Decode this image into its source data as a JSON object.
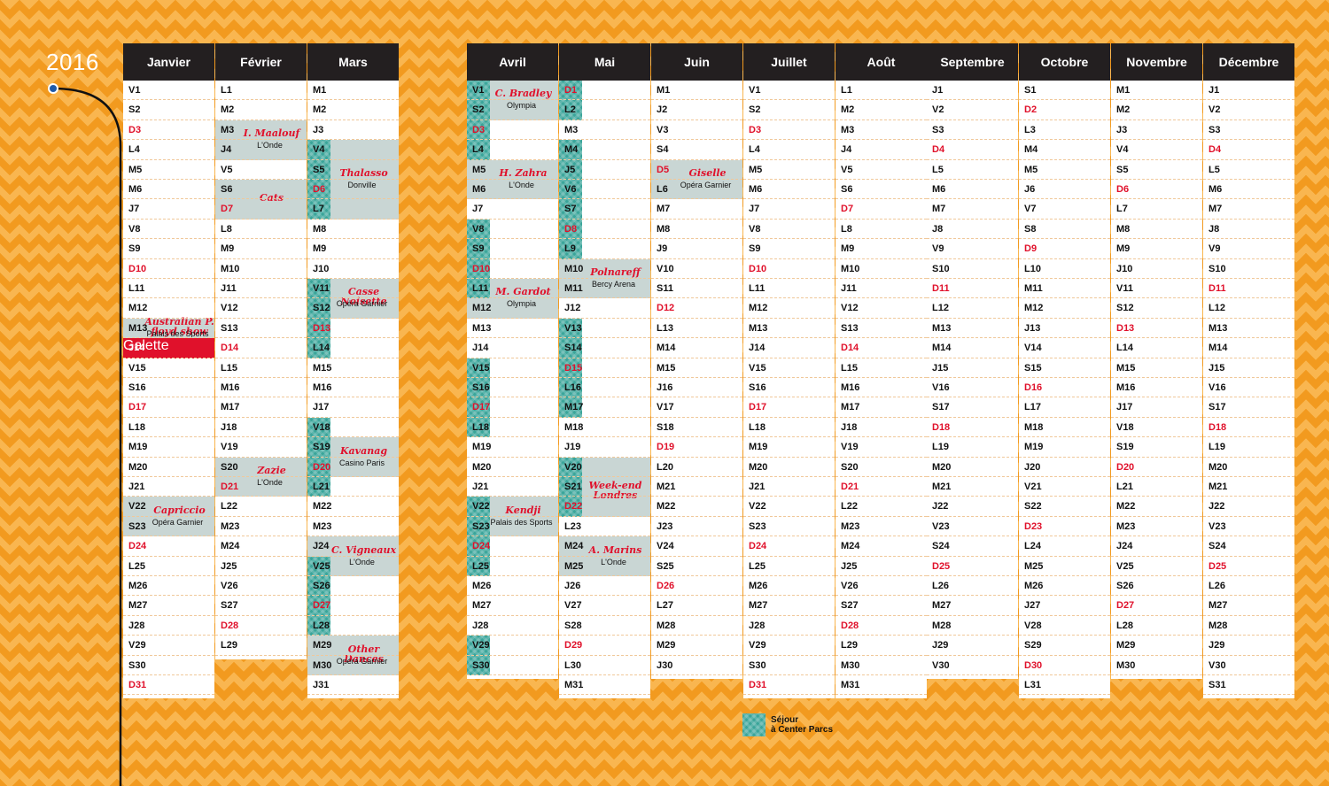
{
  "year": "2016",
  "legend": {
    "line1": "Séjour",
    "line2": "à Center Parcs"
  },
  "months": [
    {
      "name": "Janvier",
      "days": [
        "V1",
        "S2",
        "D3",
        "L4",
        "M5",
        "M6",
        "J7",
        "V8",
        "S9",
        "D10",
        "L11",
        "M12",
        "M13",
        "J14",
        "V15",
        "S16",
        "D17",
        "L18",
        "M19",
        "M20",
        "J21",
        "V22",
        "S23",
        "D24",
        "L25",
        "M26",
        "M27",
        "J28",
        "V29",
        "S30",
        "D31"
      ],
      "events": [
        {
          "title": "Australian P. floyd show",
          "venue": "Palais des Sports",
          "start": 12,
          "end": 12
        },
        {
          "title": "Capriccio",
          "venue": "Opéra Garnier",
          "start": 21,
          "end": 22
        }
      ],
      "galette": {
        "day": 13,
        "label": "Galette"
      },
      "centerparcs": []
    },
    {
      "name": "Février",
      "days": [
        "L1",
        "M2",
        "M3",
        "J4",
        "V5",
        "S6",
        "D7",
        "L8",
        "M9",
        "M10",
        "J11",
        "V12",
        "S13",
        "D14",
        "L15",
        "M16",
        "M17",
        "J18",
        "V19",
        "S20",
        "D21",
        "L22",
        "M23",
        "M24",
        "J25",
        "V26",
        "S27",
        "D28",
        "L29"
      ],
      "events": [
        {
          "title": "I. Maalouf",
          "venue": "L'Onde",
          "start": 2,
          "end": 3
        },
        {
          "title": "Cats",
          "venue": "",
          "start": 5,
          "end": 6
        },
        {
          "title": "Zazie",
          "venue": "L'Onde",
          "start": 19,
          "end": 20
        }
      ],
      "centerparcs": []
    },
    {
      "name": "Mars",
      "days": [
        "M1",
        "M2",
        "J3",
        "V4",
        "S5",
        "D6",
        "L7",
        "M8",
        "M9",
        "J10",
        "V11",
        "S12",
        "D13",
        "L14",
        "M15",
        "M16",
        "J17",
        "V18",
        "S19",
        "D20",
        "L21",
        "M22",
        "M23",
        "J24",
        "V25",
        "S26",
        "D27",
        "L28",
        "M29",
        "M30",
        "J31"
      ],
      "events": [
        {
          "title": "Thalasso",
          "venue": "Donville",
          "start": 3,
          "end": 6
        },
        {
          "title": "Casse Noisette",
          "venue": "Opéra Garnier",
          "start": 10,
          "end": 11
        },
        {
          "title": "Kavanag",
          "venue": "Casino Paris",
          "start": 18,
          "end": 19
        },
        {
          "title": "C. Vigneaux",
          "venue": "L'Onde",
          "start": 23,
          "end": 24
        },
        {
          "title": "Other Dances",
          "venue": "Opéra Garnier",
          "start": 28,
          "end": 29
        }
      ],
      "centerparcs": [
        [
          3,
          6
        ],
        [
          10,
          13
        ],
        [
          17,
          20
        ],
        [
          24,
          27
        ]
      ]
    },
    {
      "name": "Avril",
      "days": [
        "V1",
        "S2",
        "D3",
        "L4",
        "M5",
        "M6",
        "J7",
        "V8",
        "S9",
        "D10",
        "L11",
        "M12",
        "M13",
        "J14",
        "V15",
        "S16",
        "D17",
        "L18",
        "M19",
        "M20",
        "J21",
        "V22",
        "S23",
        "D24",
        "L25",
        "M26",
        "M27",
        "J28",
        "V29",
        "S30"
      ],
      "events": [
        {
          "title": "C. Bradley",
          "venue": "Olympia",
          "start": 0,
          "end": 1
        },
        {
          "title": "H. Zahra",
          "venue": "L'Onde",
          "start": 4,
          "end": 5
        },
        {
          "title": "M. Gardot",
          "venue": "Olympia",
          "start": 10,
          "end": 11
        },
        {
          "title": "Kendji",
          "venue": "Palais des Sports",
          "start": 21,
          "end": 22
        }
      ],
      "centerparcs": [
        [
          0,
          3
        ],
        [
          7,
          10
        ],
        [
          14,
          17
        ],
        [
          21,
          24
        ],
        [
          28,
          29
        ]
      ]
    },
    {
      "name": "Mai",
      "days": [
        "D1",
        "L2",
        "M3",
        "M4",
        "J5",
        "V6",
        "S7",
        "D8",
        "L9",
        "M10",
        "M11",
        "J12",
        "V13",
        "S14",
        "D15",
        "L16",
        "M17",
        "M18",
        "J19",
        "V20",
        "S21",
        "D22",
        "L23",
        "M24",
        "M25",
        "J26",
        "V27",
        "S28",
        "D29",
        "L30",
        "M31"
      ],
      "events": [
        {
          "title": "Polnareff",
          "venue": "Bercy Arena",
          "start": 9,
          "end": 10
        },
        {
          "title": "Week-end Londres",
          "venue": "",
          "start": 19,
          "end": 21
        },
        {
          "title": "A. Marins",
          "venue": "L'Onde",
          "start": 23,
          "end": 24
        }
      ],
      "centerparcs": [
        [
          0,
          1
        ],
        [
          3,
          8
        ],
        [
          12,
          16
        ],
        [
          19,
          21
        ]
      ]
    },
    {
      "name": "Juin",
      "days": [
        "M1",
        "J2",
        "V3",
        "S4",
        "D5",
        "L6",
        "M7",
        "M8",
        "J9",
        "V10",
        "S11",
        "D12",
        "L13",
        "M14",
        "M15",
        "J16",
        "V17",
        "S18",
        "D19",
        "L20",
        "M21",
        "M22",
        "J23",
        "V24",
        "S25",
        "D26",
        "L27",
        "M28",
        "M29",
        "J30"
      ],
      "events": [
        {
          "title": "Giselle",
          "venue": "Opéra Garnier",
          "start": 4,
          "end": 5
        }
      ],
      "centerparcs": []
    },
    {
      "name": "Juillet",
      "days": [
        "V1",
        "S2",
        "D3",
        "L4",
        "M5",
        "M6",
        "J7",
        "V8",
        "S9",
        "D10",
        "L11",
        "M12",
        "M13",
        "J14",
        "V15",
        "S16",
        "D17",
        "L18",
        "M19",
        "M20",
        "J21",
        "V22",
        "S23",
        "D24",
        "L25",
        "M26",
        "M27",
        "J28",
        "V29",
        "S30",
        "D31"
      ],
      "events": [],
      "centerparcs": []
    },
    {
      "name": "Août",
      "days": [
        "L1",
        "M2",
        "M3",
        "J4",
        "V5",
        "S6",
        "D7",
        "L8",
        "M9",
        "M10",
        "J11",
        "V12",
        "S13",
        "D14",
        "L15",
        "M16",
        "M17",
        "J18",
        "V19",
        "S20",
        "D21",
        "L22",
        "M23",
        "M24",
        "J25",
        "V26",
        "S27",
        "D28",
        "L29",
        "M30",
        "M31"
      ],
      "events": [],
      "centerparcs": []
    },
    {
      "name": "Septembre",
      "days": [
        "J1",
        "V2",
        "S3",
        "D4",
        "L5",
        "M6",
        "M7",
        "J8",
        "V9",
        "S10",
        "D11",
        "L12",
        "M13",
        "M14",
        "J15",
        "V16",
        "S17",
        "D18",
        "L19",
        "M20",
        "M21",
        "J22",
        "V23",
        "S24",
        "D25",
        "L26",
        "M27",
        "M28",
        "J29",
        "V30"
      ],
      "events": [],
      "centerparcs": []
    },
    {
      "name": "Octobre",
      "days": [
        "S1",
        "D2",
        "L3",
        "M4",
        "M5",
        "J6",
        "V7",
        "S8",
        "D9",
        "L10",
        "M11",
        "M12",
        "J13",
        "V14",
        "S15",
        "D16",
        "L17",
        "M18",
        "M19",
        "J20",
        "V21",
        "S22",
        "D23",
        "L24",
        "M25",
        "M26",
        "J27",
        "V28",
        "S29",
        "D30",
        "L31"
      ],
      "events": [],
      "centerparcs": []
    },
    {
      "name": "Novembre",
      "days": [
        "M1",
        "M2",
        "J3",
        "V4",
        "S5",
        "D6",
        "L7",
        "M8",
        "M9",
        "J10",
        "V11",
        "S12",
        "D13",
        "L14",
        "M15",
        "M16",
        "J17",
        "V18",
        "S19",
        "D20",
        "L21",
        "M22",
        "M23",
        "J24",
        "V25",
        "S26",
        "D27",
        "L28",
        "M29",
        "M30"
      ],
      "events": [],
      "centerparcs": []
    },
    {
      "name": "Décembre",
      "days": [
        "J1",
        "V2",
        "S3",
        "D4",
        "L5",
        "M6",
        "M7",
        "J8",
        "V9",
        "S10",
        "D11",
        "L12",
        "M13",
        "M14",
        "J15",
        "V16",
        "S17",
        "D18",
        "L19",
        "M20",
        "M21",
        "J22",
        "V23",
        "S24",
        "D25",
        "L26",
        "M27",
        "M28",
        "J29",
        "V30",
        "S31"
      ],
      "events": [],
      "centerparcs": []
    }
  ]
}
